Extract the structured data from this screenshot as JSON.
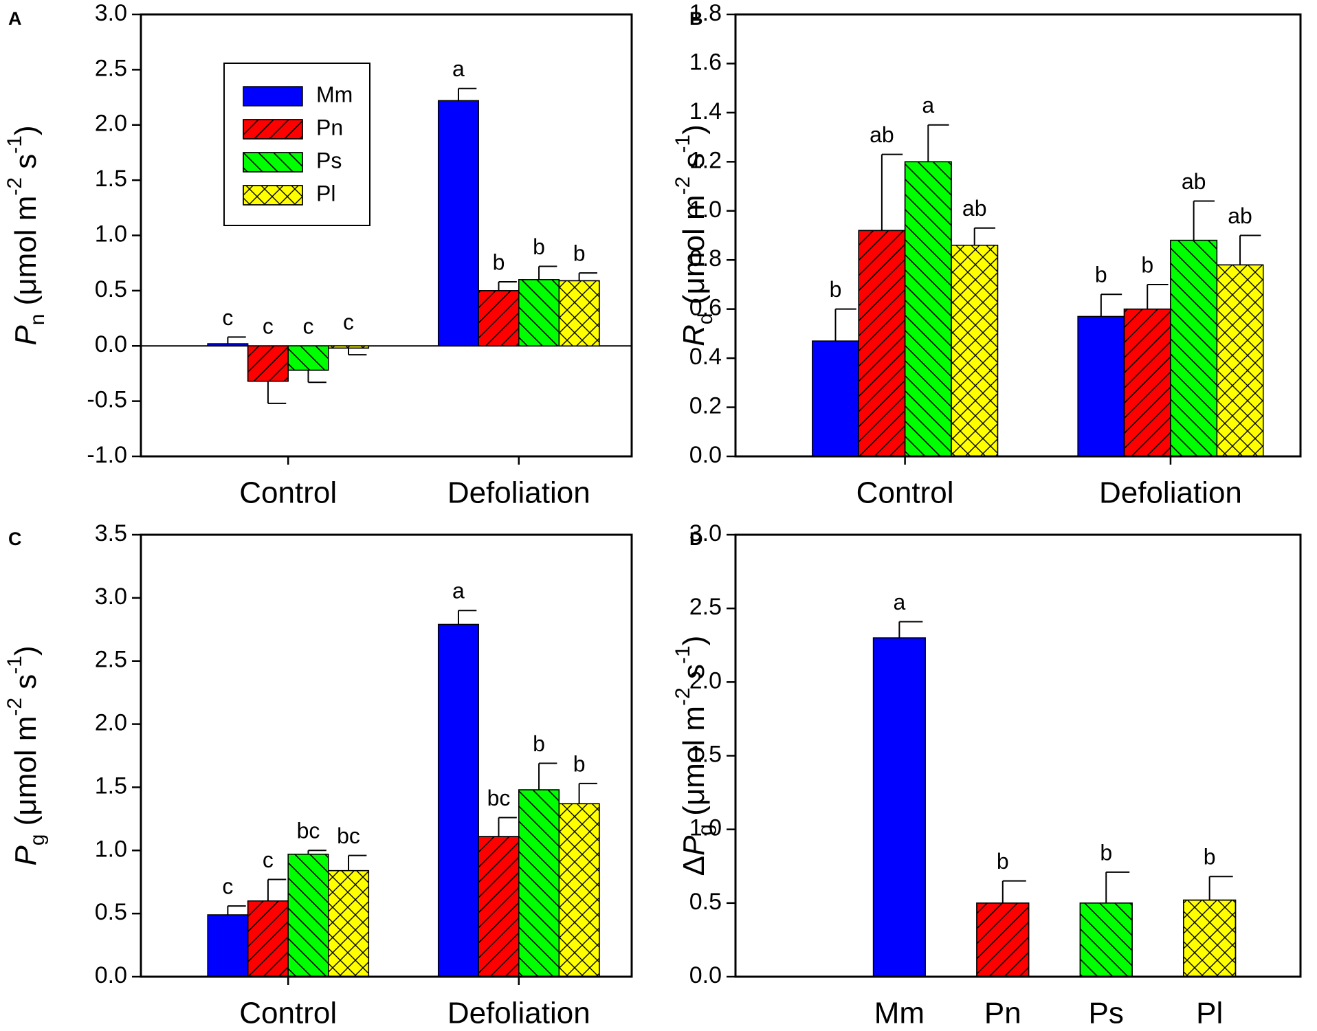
{
  "chart_data": [
    {
      "type": "grouped_bar",
      "panel_label": "A",
      "y_label": {
        "symbol": "P",
        "subscript": "n",
        "unit_parts": [
          " (μmol m",
          "-2",
          " s",
          "-1",
          ")"
        ]
      },
      "categories": [
        "Control",
        "Defoliation"
      ],
      "ylim": [
        -1,
        3
      ],
      "yticks": [
        {
          "value": -1,
          "label": "-1.0"
        },
        {
          "value": -0.5,
          "label": "-0.5"
        },
        {
          "value": 0,
          "label": "0.0"
        },
        {
          "value": 0.5,
          "label": "0.5"
        },
        {
          "value": 1,
          "label": "1.0"
        },
        {
          "value": 1.5,
          "label": "1.5"
        },
        {
          "value": 2,
          "label": "2.0"
        },
        {
          "value": 2.5,
          "label": "2.5"
        },
        {
          "value": 3,
          "label": "3.0"
        }
      ],
      "zero_line": true,
      "legend": true,
      "legend_position": "upper left",
      "series": [
        {
          "name": "Mm",
          "color": "#0000ff",
          "hatch": "none",
          "values": [
            0.02,
            2.22
          ],
          "errors": [
            0.06,
            0.11
          ],
          "letters": [
            "c",
            "a"
          ]
        },
        {
          "name": "Pn",
          "color": "#ff0000",
          "hatch": "forward",
          "values": [
            -0.32,
            0.5
          ],
          "errors": [
            0.2,
            0.08
          ],
          "letters": [
            "c",
            "b"
          ]
        },
        {
          "name": "Ps",
          "color": "#00ff00",
          "hatch": "backward",
          "values": [
            -0.22,
            0.6
          ],
          "errors": [
            0.11,
            0.12
          ],
          "letters": [
            "c",
            "b"
          ]
        },
        {
          "name": "Pl",
          "color": "#ffff00",
          "hatch": "cross",
          "values": [
            -0.02,
            0.59
          ],
          "errors": [
            0.06,
            0.07
          ],
          "letters": [
            "c",
            "b"
          ]
        }
      ]
    },
    {
      "type": "grouped_bar",
      "panel_label": "B",
      "y_label": {
        "symbol": "R",
        "subscript": "d",
        "unit_parts": [
          " (μmol m",
          "-2",
          " s",
          "-1",
          ")"
        ]
      },
      "categories": [
        "Control",
        "Defoliation"
      ],
      "ylim": [
        0,
        1.8
      ],
      "yticks": [
        {
          "value": 0,
          "label": "0.0"
        },
        {
          "value": 0.2,
          "label": "0.2"
        },
        {
          "value": 0.4,
          "label": "0.4"
        },
        {
          "value": 0.6,
          "label": "0.6"
        },
        {
          "value": 0.8,
          "label": "0.8"
        },
        {
          "value": 1,
          "label": "1.0"
        },
        {
          "value": 1.2,
          "label": "1.2"
        },
        {
          "value": 1.4,
          "label": "1.4"
        },
        {
          "value": 1.6,
          "label": "1.6"
        },
        {
          "value": 1.8,
          "label": "1.8"
        }
      ],
      "series": [
        {
          "name": "Mm",
          "color": "#0000ff",
          "hatch": "none",
          "values": [
            0.47,
            0.57
          ],
          "errors": [
            0.13,
            0.09
          ],
          "letters": [
            "b",
            "b"
          ]
        },
        {
          "name": "Pn",
          "color": "#ff0000",
          "hatch": "forward",
          "values": [
            0.92,
            0.6
          ],
          "errors": [
            0.31,
            0.1
          ],
          "letters": [
            "ab",
            "b"
          ]
        },
        {
          "name": "Ps",
          "color": "#00ff00",
          "hatch": "backward",
          "values": [
            1.2,
            0.88
          ],
          "errors": [
            0.15,
            0.16
          ],
          "letters": [
            "a",
            "ab"
          ]
        },
        {
          "name": "Pl",
          "color": "#ffff00",
          "hatch": "cross",
          "values": [
            0.86,
            0.78
          ],
          "errors": [
            0.07,
            0.12
          ],
          "letters": [
            "ab",
            "ab"
          ]
        }
      ]
    },
    {
      "type": "grouped_bar",
      "panel_label": "C",
      "y_label": {
        "symbol": "P",
        "subscript": "g",
        "unit_parts": [
          " (μmol m",
          "-2",
          " s",
          "-1",
          ")"
        ]
      },
      "categories": [
        "Control",
        "Defoliation"
      ],
      "ylim": [
        0,
        3.5
      ],
      "yticks": [
        {
          "value": 0,
          "label": "0.0"
        },
        {
          "value": 0.5,
          "label": "0.5"
        },
        {
          "value": 1,
          "label": "1.0"
        },
        {
          "value": 1.5,
          "label": "1.5"
        },
        {
          "value": 2,
          "label": "2.0"
        },
        {
          "value": 2.5,
          "label": "2.5"
        },
        {
          "value": 3,
          "label": "3.0"
        },
        {
          "value": 3.5,
          "label": "3.5"
        }
      ],
      "series": [
        {
          "name": "Mm",
          "color": "#0000ff",
          "hatch": "none",
          "values": [
            0.49,
            2.79
          ],
          "errors": [
            0.07,
            0.11
          ],
          "letters": [
            "c",
            "a"
          ]
        },
        {
          "name": "Pn",
          "color": "#ff0000",
          "hatch": "forward",
          "values": [
            0.6,
            1.11
          ],
          "errors": [
            0.17,
            0.15
          ],
          "letters": [
            "c",
            "bc"
          ]
        },
        {
          "name": "Ps",
          "color": "#00ff00",
          "hatch": "backward",
          "values": [
            0.97,
            1.48
          ],
          "errors": [
            0.03,
            0.21
          ],
          "letters": [
            "bc",
            "b"
          ]
        },
        {
          "name": "Pl",
          "color": "#ffff00",
          "hatch": "cross",
          "values": [
            0.84,
            1.37
          ],
          "errors": [
            0.12,
            0.16
          ],
          "letters": [
            "bc",
            "b"
          ]
        }
      ]
    },
    {
      "type": "bar",
      "panel_label": "D",
      "y_label": {
        "prefix": "Δ",
        "symbol": "P",
        "subscript": "g",
        "unit_parts": [
          " (μmol m",
          "-2",
          " s",
          "-1",
          ")"
        ]
      },
      "categories": [
        "Mm",
        "Pn",
        "Ps",
        "Pl"
      ],
      "ylim": [
        0,
        3
      ],
      "yticks": [
        {
          "value": 0,
          "label": "0.0"
        },
        {
          "value": 0.5,
          "label": "0.5"
        },
        {
          "value": 1,
          "label": "1.0"
        },
        {
          "value": 1.5,
          "label": "1.5"
        },
        {
          "value": 2,
          "label": "2.0"
        },
        {
          "value": 2.5,
          "label": "2.5"
        },
        {
          "value": 3,
          "label": "3.0"
        }
      ],
      "values": [
        2.3,
        0.5,
        0.5,
        0.52
      ],
      "errors": [
        0.11,
        0.15,
        0.21,
        0.16
      ],
      "letters": [
        "a",
        "b",
        "b",
        "b"
      ],
      "colors": [
        "#0000ff",
        "#ff0000",
        "#00ff00",
        "#ffff00"
      ],
      "hatches": [
        "none",
        "forward",
        "backward",
        "cross"
      ]
    }
  ]
}
